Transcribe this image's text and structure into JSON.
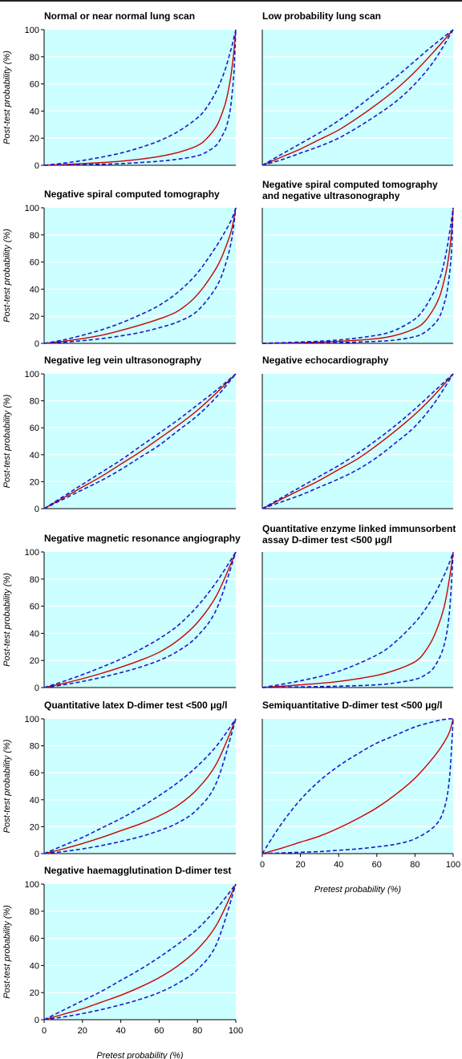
{
  "chart_data": [
    {
      "type": "line",
      "title": [
        "Normal or near normal lung scan"
      ],
      "ylabel": "Post-test probability (%)",
      "xlim": [
        0,
        100
      ],
      "ylim": [
        0,
        100
      ],
      "yticks": [
        "0",
        "20",
        "40",
        "60",
        "80",
        "100"
      ],
      "xticks": [],
      "x": [
        0,
        10,
        20,
        30,
        40,
        50,
        60,
        70,
        80,
        85,
        90,
        93,
        95,
        97,
        98,
        99,
        100
      ],
      "series": [
        {
          "style": "solid",
          "color": "#cc0000",
          "values": [
            0,
            0.5,
            1.2,
            2,
            3,
            4.5,
            6.5,
            9.5,
            14.5,
            20,
            29,
            39,
            48,
            62,
            72,
            84,
            100
          ]
        },
        {
          "style": "dashed",
          "color": "#1a1acc",
          "values": [
            0,
            1.5,
            3.5,
            6,
            9,
            13,
            18,
            25,
            35,
            43,
            55,
            65,
            73,
            83,
            88,
            94,
            100
          ]
        },
        {
          "style": "dashed",
          "color": "#1a1acc",
          "values": [
            0,
            0.2,
            0.5,
            0.8,
            1.2,
            2,
            3,
            4.5,
            7,
            10,
            15,
            22,
            28,
            40,
            52,
            68,
            100
          ]
        }
      ]
    },
    {
      "type": "line",
      "title": [
        "Low probability lung scan"
      ],
      "ylabel": "",
      "xlim": [
        0,
        100
      ],
      "ylim": [
        0,
        100
      ],
      "yticks": [],
      "xticks": [],
      "x": [
        0,
        10,
        20,
        30,
        40,
        50,
        60,
        70,
        80,
        90,
        100
      ],
      "series": [
        {
          "style": "solid",
          "color": "#cc0000",
          "values": [
            0,
            6,
            12,
            19,
            26,
            35,
            45,
            56,
            69,
            84,
            100
          ]
        },
        {
          "style": "dashed",
          "color": "#1a1acc",
          "values": [
            0,
            8,
            16,
            24,
            33,
            43,
            54,
            65,
            77,
            89,
            100
          ]
        },
        {
          "style": "dashed",
          "color": "#1a1acc",
          "values": [
            0,
            4,
            9,
            14,
            20,
            28,
            37,
            47,
            60,
            77,
            100
          ]
        }
      ]
    },
    {
      "type": "line",
      "title": [
        "Negative spiral computed tomography"
      ],
      "ylabel": "Post-test probability (%)",
      "xlim": [
        0,
        100
      ],
      "ylim": [
        0,
        100
      ],
      "yticks": [
        "0",
        "20",
        "40",
        "60",
        "80",
        "100"
      ],
      "xticks": [],
      "x": [
        0,
        10,
        20,
        30,
        40,
        50,
        60,
        70,
        80,
        90,
        95,
        98,
        100
      ],
      "series": [
        {
          "style": "solid",
          "color": "#cc0000",
          "values": [
            0,
            1.5,
            3.5,
            6,
            9.5,
            13.5,
            18,
            24,
            36,
            56,
            72,
            85,
            100
          ]
        },
        {
          "style": "dashed",
          "color": "#1a1acc",
          "values": [
            0,
            2.5,
            6,
            10,
            15,
            21,
            28,
            38,
            52,
            72,
            84,
            92,
            100
          ]
        },
        {
          "style": "dashed",
          "color": "#1a1acc",
          "values": [
            0,
            0.8,
            2,
            3.5,
            5.5,
            8,
            11.5,
            16,
            24,
            42,
            60,
            78,
            100
          ]
        }
      ]
    },
    {
      "type": "line",
      "title": [
        "Negative spiral computed tomography",
        "and negative ultrasonography"
      ],
      "ylabel": "",
      "xlim": [
        0,
        100
      ],
      "ylim": [
        0,
        100
      ],
      "yticks": [],
      "xticks": [],
      "x": [
        0,
        20,
        40,
        60,
        70,
        80,
        85,
        90,
        93,
        95,
        97,
        99,
        100
      ],
      "series": [
        {
          "style": "solid",
          "color": "#cc0000",
          "values": [
            0,
            0.5,
            1.5,
            3.5,
            6,
            11,
            16,
            26,
            35,
            45,
            58,
            80,
            100
          ]
        },
        {
          "style": "dashed",
          "color": "#1a1acc",
          "values": [
            0,
            1,
            2.5,
            6,
            10,
            18,
            26,
            38,
            48,
            58,
            72,
            90,
            100
          ]
        },
        {
          "style": "dashed",
          "color": "#1a1acc",
          "values": [
            0,
            0.2,
            0.6,
            1.5,
            2.5,
            5,
            8,
            14,
            20,
            28,
            40,
            65,
            100
          ]
        }
      ]
    },
    {
      "type": "line",
      "title": [
        "Negative leg vein ultrasonography"
      ],
      "ylabel": "Post-test probability (%)",
      "xlim": [
        0,
        100
      ],
      "ylim": [
        0,
        100
      ],
      "yticks": [
        "0",
        "20",
        "40",
        "60",
        "80",
        "100"
      ],
      "xticks": [],
      "x": [
        0,
        10,
        20,
        30,
        40,
        50,
        60,
        70,
        80,
        90,
        100
      ],
      "series": [
        {
          "style": "solid",
          "color": "#cc0000",
          "values": [
            0,
            8,
            16,
            24,
            33,
            42,
            52,
            62,
            73,
            86,
            100
          ]
        },
        {
          "style": "dashed",
          "color": "#1a1acc",
          "values": [
            0,
            9,
            18,
            27,
            36,
            46,
            56,
            66,
            77,
            88,
            100
          ]
        },
        {
          "style": "dashed",
          "color": "#1a1acc",
          "values": [
            0,
            7,
            14,
            21,
            29,
            38,
            47,
            58,
            69,
            83,
            100
          ]
        }
      ]
    },
    {
      "type": "line",
      "title": [
        "Negative echocardiography"
      ],
      "ylabel": "",
      "xlim": [
        0,
        100
      ],
      "ylim": [
        0,
        100
      ],
      "yticks": [],
      "xticks": [],
      "x": [
        0,
        10,
        20,
        30,
        40,
        50,
        60,
        70,
        80,
        90,
        100
      ],
      "series": [
        {
          "style": "solid",
          "color": "#cc0000",
          "values": [
            0,
            7,
            14,
            21,
            29,
            37,
            47,
            58,
            70,
            84,
            100
          ]
        },
        {
          "style": "dashed",
          "color": "#1a1acc",
          "values": [
            0,
            8,
            16,
            24,
            32,
            41,
            51,
            62,
            74,
            87,
            100
          ]
        },
        {
          "style": "dashed",
          "color": "#1a1acc",
          "values": [
            0,
            5,
            10,
            16,
            22,
            29,
            38,
            49,
            61,
            78,
            100
          ]
        }
      ]
    },
    {
      "type": "line",
      "title": [
        "Negative magnetic resonance angiography"
      ],
      "ylabel": "Post-test probability (%)",
      "xlim": [
        0,
        100
      ],
      "ylim": [
        0,
        100
      ],
      "yticks": [
        "0",
        "20",
        "40",
        "60",
        "80",
        "100"
      ],
      "xticks": [],
      "x": [
        0,
        10,
        20,
        30,
        40,
        50,
        60,
        70,
        80,
        90,
        100
      ],
      "series": [
        {
          "style": "solid",
          "color": "#cc0000",
          "values": [
            0,
            3,
            6.5,
            10.5,
            15,
            20,
            26,
            35,
            48,
            68,
            100
          ]
        },
        {
          "style": "dashed",
          "color": "#1a1acc",
          "values": [
            0,
            4.5,
            9.5,
            15,
            21,
            28,
            36,
            46,
            60,
            78,
            100
          ]
        },
        {
          "style": "dashed",
          "color": "#1a1acc",
          "values": [
            0,
            2,
            4.5,
            7.5,
            11,
            15,
            20,
            27,
            38,
            58,
            100
          ]
        }
      ]
    },
    {
      "type": "line",
      "title": [
        "Quantitative enzyme linked immunsorbent",
        "assay D-dimer test <500 μg/l"
      ],
      "ylabel": "",
      "xlim": [
        0,
        100
      ],
      "ylim": [
        0,
        100
      ],
      "yticks": [],
      "xticks": [],
      "x": [
        0,
        20,
        40,
        60,
        70,
        80,
        85,
        90,
        95,
        98,
        100
      ],
      "series": [
        {
          "style": "solid",
          "color": "#cc0000",
          "values": [
            0,
            2,
            4.5,
            9,
            13,
            19,
            26,
            38,
            58,
            80,
            100
          ]
        },
        {
          "style": "dashed",
          "color": "#1a1acc",
          "values": [
            0,
            5,
            12,
            24,
            34,
            48,
            57,
            68,
            82,
            92,
            100
          ]
        },
        {
          "style": "dashed",
          "color": "#1a1acc",
          "values": [
            0,
            0.5,
            1,
            2,
            3.5,
            6,
            9,
            15,
            30,
            55,
            100
          ]
        }
      ]
    },
    {
      "type": "line",
      "title": [
        "Quantitative latex D-dimer test <500 μg/l"
      ],
      "ylabel": "Post-test probability (%)",
      "xlim": [
        0,
        100
      ],
      "ylim": [
        0,
        100
      ],
      "yticks": [
        "0",
        "20",
        "40",
        "60",
        "80",
        "100"
      ],
      "xticks": [],
      "x": [
        0,
        10,
        20,
        30,
        40,
        50,
        60,
        70,
        80,
        90,
        100
      ],
      "series": [
        {
          "style": "solid",
          "color": "#cc0000",
          "values": [
            0,
            3.5,
            7.5,
            12,
            17,
            22,
            28,
            36,
            48,
            67,
            100
          ]
        },
        {
          "style": "dashed",
          "color": "#1a1acc",
          "values": [
            0,
            6,
            12,
            19,
            26,
            34,
            43,
            53,
            65,
            80,
            100
          ]
        },
        {
          "style": "dashed",
          "color": "#1a1acc",
          "values": [
            0,
            1.5,
            3.5,
            6,
            9,
            12.5,
            17,
            23,
            33,
            53,
            100
          ]
        }
      ]
    },
    {
      "type": "line",
      "title": [
        "Semiquantitative D-dimer test <500 μg/l"
      ],
      "ylabel": "",
      "xlabel": "Pretest probability (%)",
      "xlim": [
        0,
        100
      ],
      "ylim": [
        0,
        100
      ],
      "yticks": [],
      "xticks": [
        "0",
        "20",
        "40",
        "60",
        "80",
        "100"
      ],
      "x": [
        0,
        10,
        20,
        30,
        40,
        50,
        60,
        70,
        80,
        90,
        95,
        98,
        100
      ],
      "series": [
        {
          "style": "solid",
          "color": "#cc0000",
          "values": [
            0,
            4,
            8.5,
            13,
            19,
            26,
            34,
            44,
            56,
            72,
            82,
            90,
            100
          ]
        },
        {
          "style": "dashed",
          "color": "#1a1acc",
          "values": [
            0,
            22,
            40,
            54,
            65,
            74,
            82,
            88,
            94,
            98,
            99.5,
            100,
            100
          ]
        },
        {
          "style": "dashed",
          "color": "#1a1acc",
          "values": [
            0,
            0.5,
            1,
            1.5,
            2.5,
            3.5,
            5,
            7,
            11,
            20,
            32,
            55,
            100
          ]
        }
      ]
    },
    {
      "type": "line",
      "title": [
        "Negative haemagglutination D-dimer test"
      ],
      "ylabel": "Post-test probability (%)",
      "xlabel": "Pretest probability (%)",
      "xlim": [
        0,
        100
      ],
      "ylim": [
        0,
        100
      ],
      "yticks": [
        "0",
        "20",
        "40",
        "60",
        "80",
        "100"
      ],
      "xticks": [
        "0",
        "20",
        "40",
        "60",
        "80",
        "100"
      ],
      "x": [
        0,
        10,
        20,
        30,
        40,
        50,
        60,
        70,
        80,
        90,
        100
      ],
      "series": [
        {
          "style": "solid",
          "color": "#cc0000",
          "values": [
            0,
            4,
            8,
            13,
            18,
            24,
            31,
            40,
            52,
            70,
            100
          ]
        },
        {
          "style": "dashed",
          "color": "#1a1acc",
          "values": [
            0,
            7,
            14,
            21,
            29,
            37,
            46,
            56,
            67,
            82,
            100
          ]
        },
        {
          "style": "dashed",
          "color": "#1a1acc",
          "values": [
            0,
            2,
            4.5,
            7.5,
            11,
            15,
            20,
            27,
            37,
            56,
            100
          ]
        }
      ]
    }
  ],
  "colors": {
    "plot_background": "#ccffff",
    "gridline": "#ffffff",
    "axis": "#000000"
  }
}
